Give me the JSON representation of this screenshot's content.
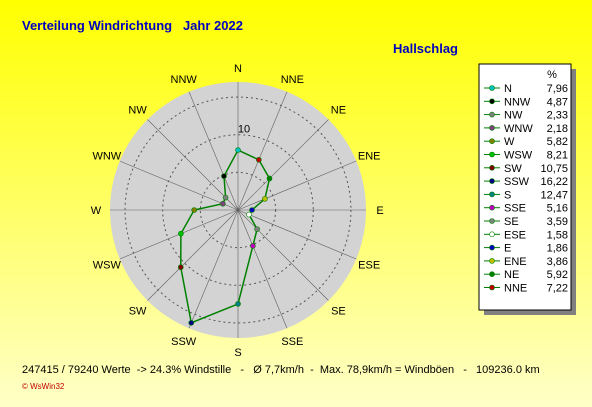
{
  "chart_data": {
    "type": "polar",
    "title": "Verteilung Windrichtung   Jahr 2022",
    "subtitle": "Hallschlag",
    "categories": [
      "N",
      "NNW",
      "NW",
      "WNW",
      "W",
      "WSW",
      "SW",
      "SSW",
      "S",
      "SSE",
      "SE",
      "ESE",
      "E",
      "ENE",
      "NE",
      "NNE"
    ],
    "series": [
      {
        "name": "%",
        "color": "#008000",
        "values": [
          7.96,
          4.87,
          2.33,
          2.18,
          5.82,
          8.21,
          10.75,
          16.22,
          12.47,
          5.16,
          3.59,
          1.58,
          1.86,
          3.86,
          5.92,
          7.22
        ],
        "value_labels": [
          "7,96",
          "4,87",
          "2,33",
          "2,18",
          "5,82",
          "8,21",
          "10,75",
          "16,22",
          "12,47",
          "5,16",
          "3,59",
          "1,58",
          "1,86",
          "3,86",
          "5,92",
          "7,22"
        ],
        "point_colors": [
          "#00c0c0",
          "#000000",
          "#808080",
          "#804080",
          "#808000",
          "#00c000",
          "#800000",
          "#000080",
          "#008080",
          "#c000c0",
          "#808080",
          "#ffffff",
          "#0000c0",
          "#c0c000",
          "#008000",
          "#c00000"
        ]
      }
    ],
    "rlim": [
      0,
      17
    ],
    "rticks": [
      10
    ],
    "rgrid": [
      5,
      10,
      15
    ],
    "footer": "247415 / 79240 Werte  -> 24.3% Windstille   -   Ø 7,7km/h  -  Max. 78,9km/h = Windböen   -   109236.0 km",
    "credit": "© WsWin32"
  }
}
